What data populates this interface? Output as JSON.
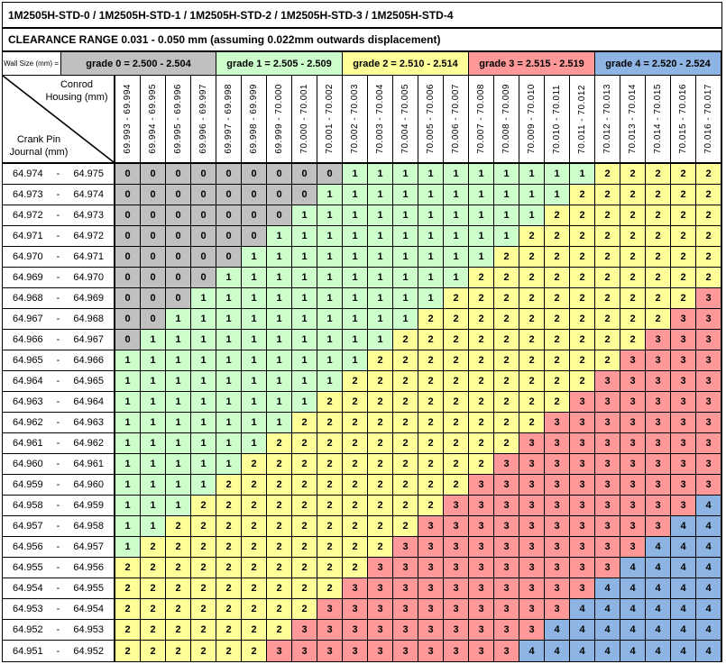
{
  "title": "1M2505H-STD-0 / 1M2505H-STD-1 / 1M2505H-STD-2 / 1M2505H-STD-3 / 1M2505H-STD-4",
  "clearance_note": "CLEARANCE RANGE 0.031 - 0.050 mm (assuming 0.022mm outwards displacement)",
  "wall_size_label": "Wall Size (mm) =",
  "corner": {
    "top": "Conrod Housing (mm)",
    "bottom": "Crank Pin Journal (mm)"
  },
  "grade_colors": {
    "0": "#C0C0C0",
    "1": "#CCFFCC",
    "2": "#FFFF99",
    "3": "#FF9999",
    "4": "#8DB4E2"
  },
  "grade_bands": [
    {
      "grade": 0,
      "label": "grade 0 = 2.500 - 2.504"
    },
    {
      "grade": 1,
      "label": "grade 1 = 2.505 - 2.509"
    },
    {
      "grade": 2,
      "label": "grade 2 = 2.510 - 2.514"
    },
    {
      "grade": 3,
      "label": "grade 3 = 2.515 - 2.519"
    },
    {
      "grade": 4,
      "label": "grade 4 = 2.520 - 2.524"
    }
  ],
  "chart_data": {
    "type": "table",
    "title": "1M2505H-STD-0 / 1M2505H-STD-1 / 1M2505H-STD-2 / 1M2505H-STD-3 / 1M2505H-STD-4",
    "subtitle": "CLEARANCE RANGE 0.031 - 0.050 mm (assuming 0.022mm outwards displacement)",
    "x_axis_label": "Conrod Housing (mm)",
    "y_axis_label": "Crank Pin Journal (mm)",
    "legend": [
      {
        "value": 0,
        "label": "grade 0 = 2.500 - 2.504",
        "color": "#C0C0C0"
      },
      {
        "value": 1,
        "label": "grade 1 = 2.505 - 2.509",
        "color": "#CCFFCC"
      },
      {
        "value": 2,
        "label": "grade 2 = 2.510 - 2.514",
        "color": "#FFFF99"
      },
      {
        "value": 3,
        "label": "grade 3 = 2.515 - 2.519",
        "color": "#FF9999"
      },
      {
        "value": 4,
        "label": "grade 4 = 2.520 - 2.524",
        "color": "#8DB4E2"
      }
    ],
    "band_spans": [
      {
        "grade": 0,
        "columns": [
          "69.993 - 69.994",
          "69.996 - 69.997"
        ]
      },
      {
        "grade": 1,
        "columns": [
          "69.997 - 69.998",
          "70.001 - 70.002"
        ]
      },
      {
        "grade": 2,
        "columns": [
          "70.002 - 70.003",
          "70.006 - 70.007"
        ]
      },
      {
        "grade": 3,
        "columns": [
          "70.007 - 70.008",
          "70.011 - 70.012"
        ]
      },
      {
        "grade": 4,
        "columns": [
          "70.012 - 70.013",
          "70.016 - 70.017"
        ]
      }
    ],
    "column_headers": [
      "69.993 - 69.994",
      "69.994 - 69.995",
      "69.995 - 69.996",
      "69.996 - 69.997",
      "69.997 - 69.998",
      "69.998 - 69.999",
      "69.999 - 70.000",
      "70.000 - 70.001",
      "70.001 - 70.002",
      "70.002 - 70.003",
      "70.003 - 70.004",
      "70.004 - 70.005",
      "70.005 - 70.006",
      "70.006 - 70.007",
      "70.007 - 70.008",
      "70.008 - 70.009",
      "70.009 - 70.010",
      "70.010 - 70.011",
      "70.011 - 70.012",
      "70.012 - 70.013",
      "70.013 - 70.014",
      "70.014 - 70.015",
      "70.015 - 70.016",
      "70.016 - 70.017"
    ],
    "row_headers": [
      "64.974 - 64.975",
      "64.973 - 64.974",
      "64.972 - 64.973",
      "64.971 - 64.972",
      "64.970 - 64.971",
      "64.969 - 64.970",
      "64.968 - 64.969",
      "64.967 - 64.968",
      "64.966 - 64.967",
      "64.965 - 64.966",
      "64.964 - 64.965",
      "64.963 - 64.964",
      "64.962 - 64.963",
      "64.961 - 64.962",
      "64.960 - 64.961",
      "64.959 - 64.960",
      "64.958 - 64.959",
      "64.957 - 64.958",
      "64.956 - 64.957",
      "64.955 - 64.956",
      "64.954 - 64.955",
      "64.953 - 64.954",
      "64.952 - 64.953",
      "64.951 - 64.952"
    ],
    "matrix": [
      [
        0,
        0,
        0,
        0,
        0,
        0,
        0,
        0,
        0,
        1,
        1,
        1,
        1,
        1,
        1,
        1,
        1,
        1,
        1,
        2,
        2,
        2,
        2,
        2
      ],
      [
        0,
        0,
        0,
        0,
        0,
        0,
        0,
        0,
        1,
        1,
        1,
        1,
        1,
        1,
        1,
        1,
        1,
        1,
        2,
        2,
        2,
        2,
        2,
        2
      ],
      [
        0,
        0,
        0,
        0,
        0,
        0,
        0,
        1,
        1,
        1,
        1,
        1,
        1,
        1,
        1,
        1,
        1,
        2,
        2,
        2,
        2,
        2,
        2,
        2
      ],
      [
        0,
        0,
        0,
        0,
        0,
        0,
        1,
        1,
        1,
        1,
        1,
        1,
        1,
        1,
        1,
        1,
        2,
        2,
        2,
        2,
        2,
        2,
        2,
        2
      ],
      [
        0,
        0,
        0,
        0,
        0,
        1,
        1,
        1,
        1,
        1,
        1,
        1,
        1,
        1,
        1,
        2,
        2,
        2,
        2,
        2,
        2,
        2,
        2,
        2
      ],
      [
        0,
        0,
        0,
        0,
        1,
        1,
        1,
        1,
        1,
        1,
        1,
        1,
        1,
        1,
        2,
        2,
        2,
        2,
        2,
        2,
        2,
        2,
        2,
        2
      ],
      [
        0,
        0,
        0,
        1,
        1,
        1,
        1,
        1,
        1,
        1,
        1,
        1,
        1,
        2,
        2,
        2,
        2,
        2,
        2,
        2,
        2,
        2,
        2,
        3
      ],
      [
        0,
        0,
        1,
        1,
        1,
        1,
        1,
        1,
        1,
        1,
        1,
        1,
        2,
        2,
        2,
        2,
        2,
        2,
        2,
        2,
        2,
        2,
        3,
        3
      ],
      [
        0,
        1,
        1,
        1,
        1,
        1,
        1,
        1,
        1,
        1,
        1,
        2,
        2,
        2,
        2,
        2,
        2,
        2,
        2,
        2,
        2,
        3,
        3,
        3
      ],
      [
        1,
        1,
        1,
        1,
        1,
        1,
        1,
        1,
        1,
        1,
        2,
        2,
        2,
        2,
        2,
        2,
        2,
        2,
        2,
        2,
        3,
        3,
        3,
        3
      ],
      [
        1,
        1,
        1,
        1,
        1,
        1,
        1,
        1,
        1,
        2,
        2,
        2,
        2,
        2,
        2,
        2,
        2,
        2,
        2,
        3,
        3,
        3,
        3,
        3
      ],
      [
        1,
        1,
        1,
        1,
        1,
        1,
        1,
        1,
        2,
        2,
        2,
        2,
        2,
        2,
        2,
        2,
        2,
        2,
        3,
        3,
        3,
        3,
        3,
        3
      ],
      [
        1,
        1,
        1,
        1,
        1,
        1,
        1,
        2,
        2,
        2,
        2,
        2,
        2,
        2,
        2,
        2,
        2,
        3,
        3,
        3,
        3,
        3,
        3,
        3
      ],
      [
        1,
        1,
        1,
        1,
        1,
        1,
        2,
        2,
        2,
        2,
        2,
        2,
        2,
        2,
        2,
        2,
        3,
        3,
        3,
        3,
        3,
        3,
        3,
        3
      ],
      [
        1,
        1,
        1,
        1,
        1,
        2,
        2,
        2,
        2,
        2,
        2,
        2,
        2,
        2,
        2,
        3,
        3,
        3,
        3,
        3,
        3,
        3,
        3,
        3
      ],
      [
        1,
        1,
        1,
        1,
        2,
        2,
        2,
        2,
        2,
        2,
        2,
        2,
        2,
        2,
        3,
        3,
        3,
        3,
        3,
        3,
        3,
        3,
        3,
        3
      ],
      [
        1,
        1,
        1,
        2,
        2,
        2,
        2,
        2,
        2,
        2,
        2,
        2,
        2,
        3,
        3,
        3,
        3,
        3,
        3,
        3,
        3,
        3,
        3,
        4
      ],
      [
        1,
        1,
        2,
        2,
        2,
        2,
        2,
        2,
        2,
        2,
        2,
        2,
        3,
        3,
        3,
        3,
        3,
        3,
        3,
        3,
        3,
        3,
        4,
        4
      ],
      [
        1,
        2,
        2,
        2,
        2,
        2,
        2,
        2,
        2,
        2,
        2,
        3,
        3,
        3,
        3,
        3,
        3,
        3,
        3,
        3,
        3,
        4,
        4,
        4
      ],
      [
        2,
        2,
        2,
        2,
        2,
        2,
        2,
        2,
        2,
        2,
        3,
        3,
        3,
        3,
        3,
        3,
        3,
        3,
        3,
        3,
        4,
        4,
        4,
        4
      ],
      [
        2,
        2,
        2,
        2,
        2,
        2,
        2,
        2,
        2,
        3,
        3,
        3,
        3,
        3,
        3,
        3,
        3,
        3,
        3,
        4,
        4,
        4,
        4,
        4
      ],
      [
        2,
        2,
        2,
        2,
        2,
        2,
        2,
        2,
        3,
        3,
        3,
        3,
        3,
        3,
        3,
        3,
        3,
        3,
        4,
        4,
        4,
        4,
        4,
        4
      ],
      [
        2,
        2,
        2,
        2,
        2,
        2,
        2,
        3,
        3,
        3,
        3,
        3,
        3,
        3,
        3,
        3,
        3,
        4,
        4,
        4,
        4,
        4,
        4,
        4
      ],
      [
        2,
        2,
        2,
        2,
        2,
        2,
        3,
        3,
        3,
        3,
        3,
        3,
        3,
        3,
        3,
        3,
        4,
        4,
        4,
        4,
        4,
        4,
        4,
        4
      ]
    ]
  }
}
